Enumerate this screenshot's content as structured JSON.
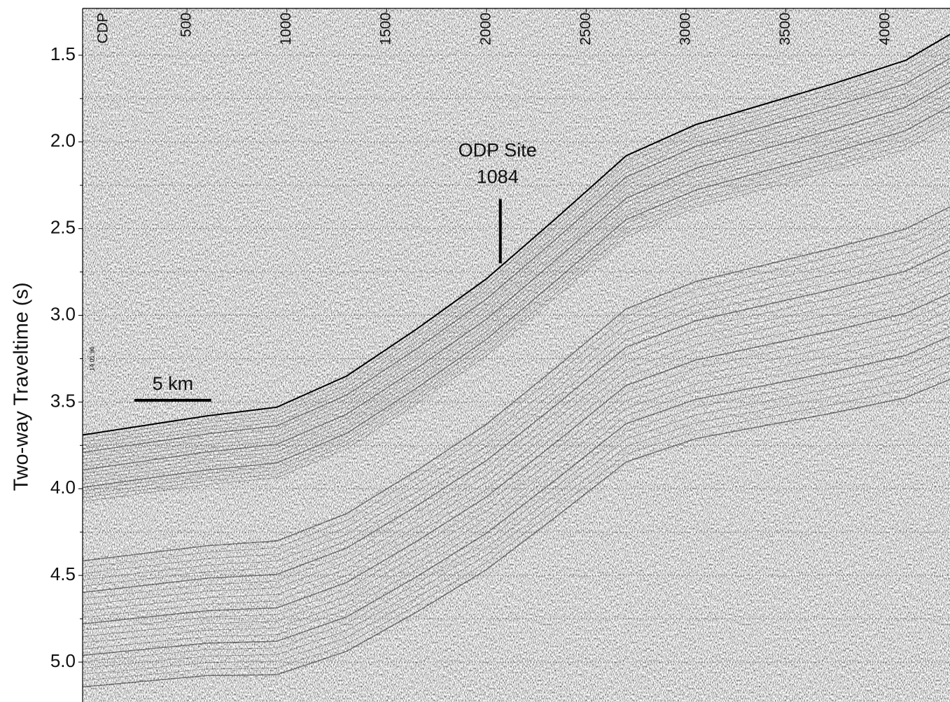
{
  "chart_data": {
    "type": "line",
    "x_label": "CDP",
    "y_label": "Two-way Traveltime (s)",
    "xlim": [
      -23,
      4323
    ],
    "ylim": [
      1.23,
      5.23
    ],
    "y_inverted": true,
    "xticks": [
      500,
      1000,
      1500,
      2000,
      2500,
      3000,
      3500,
      4000
    ],
    "yticks": [
      1.5,
      {
        "value": 2,
        "label": "2.0"
      },
      2.5,
      {
        "value": 3,
        "label": "3.0"
      },
      3.5,
      {
        "value": 4,
        "label": "4.0"
      },
      4.5,
      {
        "value": 5,
        "label": "5.0"
      }
    ],
    "minor_yticks": [
      1.75,
      2.25,
      2.75,
      3.25,
      3.75,
      4.25,
      4.75
    ],
    "grid": true,
    "x": [
      -23,
      600,
      950,
      1300,
      1650,
      2000,
      2350,
      2700,
      3050,
      3400,
      3750,
      4100,
      4323
    ],
    "series": [
      {
        "color": "#000000",
        "values": [
          3.69,
          3.58,
          3.53,
          3.35,
          3.08,
          2.79,
          2.44,
          2.08,
          1.9,
          1.78,
          1.66,
          1.53,
          1.38
        ]
      }
    ],
    "site": {
      "label": [
        "ODP Site",
        "1084"
      ],
      "x": 2070,
      "y": [
        2.33,
        2.7
      ]
    },
    "scale_bar": {
      "label": "5 km",
      "x": [
        236,
        622
      ],
      "y": 3.49
    },
    "date_stamp": "14.01.96"
  }
}
